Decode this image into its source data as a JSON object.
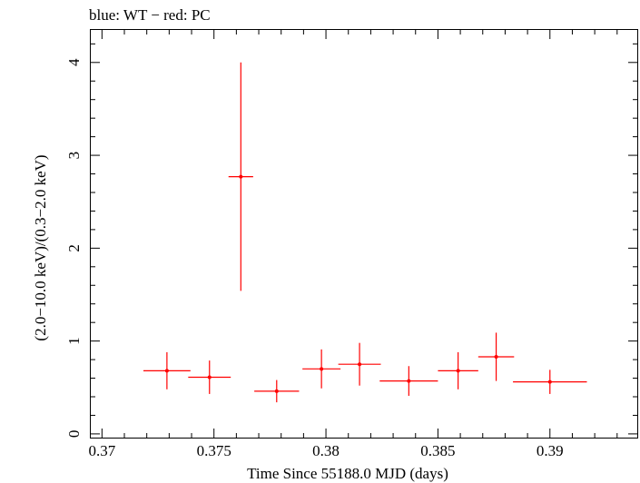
{
  "chart_data": {
    "type": "scatter",
    "title": "blue: WT − red: PC",
    "xlabel": "Time Since 55188.0 MJD (days)",
    "ylabel": "(2.0−10.0 keV)/(0.3−2.0 keV)",
    "xlim": [
      0.3695,
      0.3939
    ],
    "ylim": [
      -0.04,
      4.35
    ],
    "x_ticks": [
      {
        "value": 0.37,
        "label": "0.37"
      },
      {
        "value": 0.375,
        "label": "0.375"
      },
      {
        "value": 0.38,
        "label": "0.38"
      },
      {
        "value": 0.385,
        "label": "0.385"
      },
      {
        "value": 0.39,
        "label": "0.39"
      }
    ],
    "y_ticks": [
      {
        "value": 0,
        "label": "0"
      },
      {
        "value": 1,
        "label": "1"
      },
      {
        "value": 2,
        "label": "2"
      },
      {
        "value": 3,
        "label": "3"
      },
      {
        "value": 4,
        "label": "4"
      }
    ],
    "series": [
      {
        "name": "PC",
        "color": "#ff0000",
        "points": [
          {
            "x": 0.3729,
            "xerr": 0.00105,
            "y": 0.68,
            "yerr_low": 0.2,
            "yerr_high": 0.2
          },
          {
            "x": 0.3748,
            "xerr": 0.00095,
            "y": 0.61,
            "yerr_low": 0.18,
            "yerr_high": 0.18
          },
          {
            "x": 0.3762,
            "xerr": 0.00055,
            "y": 2.77,
            "yerr_low": 1.23,
            "yerr_high": 1.23
          },
          {
            "x": 0.3778,
            "xerr": 0.001,
            "y": 0.46,
            "yerr_low": 0.12,
            "yerr_high": 0.12
          },
          {
            "x": 0.3798,
            "xerr": 0.00085,
            "y": 0.7,
            "yerr_low": 0.21,
            "yerr_high": 0.21
          },
          {
            "x": 0.3815,
            "xerr": 0.00095,
            "y": 0.75,
            "yerr_low": 0.23,
            "yerr_high": 0.23
          },
          {
            "x": 0.3837,
            "xerr": 0.0013,
            "y": 0.57,
            "yerr_low": 0.16,
            "yerr_high": 0.16
          },
          {
            "x": 0.3859,
            "xerr": 0.0009,
            "y": 0.68,
            "yerr_low": 0.2,
            "yerr_high": 0.2
          },
          {
            "x": 0.3876,
            "xerr": 0.0008,
            "y": 0.83,
            "yerr_low": 0.26,
            "yerr_high": 0.26
          },
          {
            "x": 0.39,
            "xerr": 0.00165,
            "y": 0.56,
            "yerr_low": 0.13,
            "yerr_high": 0.13
          }
        ]
      }
    ]
  }
}
